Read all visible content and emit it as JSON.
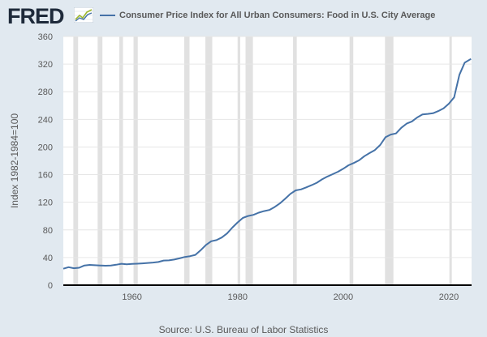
{
  "logo": {
    "text": "FRED",
    "color": "#1e2a3a",
    "icon": "fred-line-graph-icon"
  },
  "legend": {
    "label": "Consumer Price Index for All Urban Consumers: Food in U.S. City Average"
  },
  "source": "Source: U.S. Bureau of Labor Statistics",
  "colors": {
    "background": "#e1e9f0",
    "plot": "#ffffff",
    "line": "#4572a7",
    "recession": "#e1e1e1",
    "grid": "#e6e6e6",
    "axis": "#000000",
    "text": "#595959"
  },
  "chart_data": {
    "type": "line",
    "title": "",
    "xlabel": "",
    "ylabel": "Index 1982-1984=100",
    "xlim": [
      1947,
      2024.3
    ],
    "ylim": [
      0,
      360
    ],
    "yticks": [
      0,
      40,
      80,
      120,
      160,
      200,
      240,
      280,
      320,
      360
    ],
    "xticks": [
      1960,
      1980,
      2000,
      2020
    ],
    "grid": "horizontal",
    "legend_position": "top",
    "recessions": [
      [
        1948.9,
        1949.8
      ],
      [
        1953.5,
        1954.4
      ],
      [
        1957.6,
        1958.3
      ],
      [
        1960.3,
        1961.1
      ],
      [
        1969.9,
        1970.9
      ],
      [
        1973.9,
        1975.2
      ],
      [
        1980.0,
        1980.5
      ],
      [
        1981.5,
        1982.9
      ],
      [
        1990.5,
        1991.2
      ],
      [
        2001.2,
        2001.9
      ],
      [
        2007.9,
        2009.5
      ],
      [
        2020.1,
        2020.4
      ]
    ],
    "series": [
      {
        "name": "Consumer Price Index for All Urban Consumers: Food in U.S. City Average",
        "x": [
          1947,
          1948,
          1949,
          1950,
          1951,
          1952,
          1953,
          1954,
          1955,
          1956,
          1957,
          1958,
          1959,
          1960,
          1961,
          1962,
          1963,
          1964,
          1965,
          1966,
          1967,
          1968,
          1969,
          1970,
          1971,
          1972,
          1973,
          1974,
          1975,
          1976,
          1977,
          1978,
          1979,
          1980,
          1981,
          1982,
          1983,
          1984,
          1985,
          1986,
          1987,
          1988,
          1989,
          1990,
          1991,
          1992,
          1993,
          1994,
          1995,
          1996,
          1997,
          1998,
          1999,
          2000,
          2001,
          2002,
          2003,
          2004,
          2005,
          2006,
          2007,
          2008,
          2009,
          2010,
          2011,
          2012,
          2013,
          2014,
          2015,
          2016,
          2017,
          2018,
          2019,
          2020,
          2021,
          2022,
          2023,
          2024.2
        ],
        "values": [
          23.8,
          26.0,
          24.5,
          25.2,
          28.5,
          29.3,
          28.8,
          28.5,
          28.1,
          28.4,
          29.5,
          31.0,
          30.3,
          30.7,
          31.1,
          31.5,
          32.1,
          32.7,
          33.5,
          35.6,
          35.9,
          37.1,
          38.8,
          40.8,
          42.0,
          43.8,
          50.5,
          58.2,
          63.6,
          65.2,
          69.0,
          74.8,
          83.3,
          90.8,
          97.3,
          100.1,
          101.8,
          105.0,
          107.2,
          108.8,
          113.1,
          118.3,
          125.0,
          132.2,
          137.2,
          138.6,
          141.5,
          144.7,
          148.2,
          153.2,
          157.2,
          160.7,
          164.2,
          168.5,
          173.6,
          176.8,
          180.7,
          186.7,
          191.2,
          195.6,
          202.9,
          214.1,
          218.0,
          219.6,
          227.8,
          233.8,
          237.0,
          242.7,
          247.2,
          247.9,
          248.8,
          252.0,
          256.0,
          262.7,
          271.8,
          304.5,
          322.0,
          327.5
        ]
      }
    ]
  }
}
